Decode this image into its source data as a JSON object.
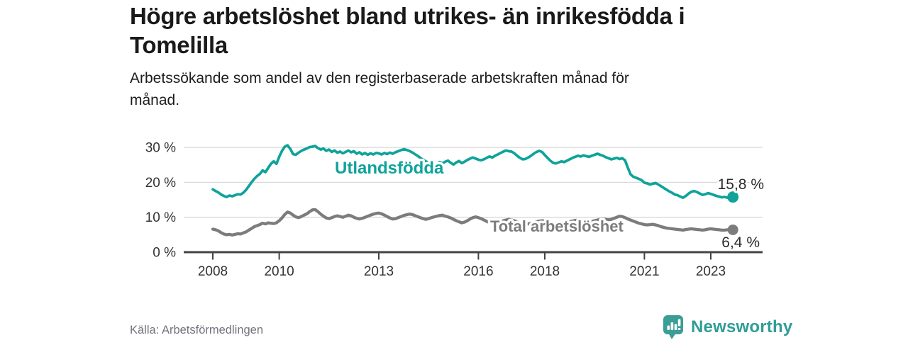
{
  "header": {
    "title": "Högre arbetslöshet bland utrikes- än inrikesfödda i\nTomelilla",
    "subtitle": "Arbetssökande som andel av den registerbaserade arbetskraften månad för\nmånad."
  },
  "chart_data": {
    "type": "line",
    "title": "Högre arbetslöshet bland utrikes- än inrikesfödda i Tomelilla",
    "subtitle": "Arbetssökande som andel av den registerbaserade arbetskraften månad för månad.",
    "x_interval": "monthly",
    "x_start": "2008-01",
    "x_end": "2023-09",
    "ylim": [
      0,
      32
    ],
    "grid": "horizontal",
    "yticks": [
      {
        "value": 0,
        "label": "0 %"
      },
      {
        "value": 10,
        "label": "10 %"
      },
      {
        "value": 20,
        "label": "20 %"
      },
      {
        "value": 30,
        "label": "30 %"
      }
    ],
    "xticks": [
      {
        "value": 2008,
        "label": "2008"
      },
      {
        "value": 2010,
        "label": "2010"
      },
      {
        "value": 2013,
        "label": "2013"
      },
      {
        "value": 2016,
        "label": "2016"
      },
      {
        "value": 2018,
        "label": "2018"
      },
      {
        "value": 2021,
        "label": "2021"
      },
      {
        "value": 2023,
        "label": "2023"
      }
    ],
    "series": [
      {
        "name": "Utlandsfödda",
        "color": "#0fa39a",
        "end_value": 15.8,
        "end_value_label": "15,8 %",
        "values": [
          18.0,
          17.5,
          17.1,
          16.5,
          16.1,
          15.8,
          16.2,
          16.0,
          16.3,
          16.6,
          16.5,
          17.0,
          17.8,
          18.9,
          20.0,
          21.0,
          21.8,
          22.4,
          23.4,
          22.9,
          24.1,
          25.3,
          26.0,
          25.3,
          27.3,
          29.0,
          30.2,
          30.6,
          29.6,
          28.1,
          27.9,
          28.5,
          29.0,
          29.4,
          29.7,
          30.1,
          30.2,
          30.4,
          29.8,
          29.4,
          29.7,
          29.0,
          29.4,
          28.7,
          29.1,
          28.5,
          28.8,
          28.3,
          28.7,
          29.1,
          28.6,
          28.9,
          28.2,
          28.6,
          28.0,
          28.4,
          27.9,
          28.3,
          28.0,
          28.4,
          28.3,
          28.0,
          28.4,
          28.1,
          28.5,
          28.2,
          28.6,
          28.9,
          29.2,
          29.5,
          29.3,
          29.0,
          28.6,
          28.1,
          27.6,
          27.0,
          26.5,
          26.0,
          25.6,
          25.2,
          24.9,
          25.3,
          25.8,
          25.4,
          25.9,
          26.2,
          25.6,
          25.1,
          25.7,
          26.1,
          25.5,
          25.9,
          26.4,
          26.8,
          27.1,
          26.8,
          26.5,
          26.3,
          26.6,
          27.0,
          27.4,
          27.1,
          27.6,
          28.0,
          28.4,
          28.8,
          29.1,
          28.9,
          28.8,
          28.3,
          27.6,
          27.0,
          26.6,
          26.7,
          27.1,
          27.6,
          28.2,
          28.7,
          29.0,
          28.7,
          27.8,
          27.0,
          26.2,
          25.6,
          25.4,
          25.7,
          26.0,
          25.8,
          26.2,
          26.6,
          27.0,
          27.3,
          27.6,
          27.4,
          27.7,
          27.5,
          27.3,
          27.6,
          27.9,
          28.2,
          27.9,
          27.6,
          27.2,
          26.9,
          26.6,
          26.8,
          27.0,
          26.7,
          26.9,
          26.3,
          24.2,
          22.3,
          21.6,
          21.3,
          21.0,
          20.6,
          19.9,
          19.7,
          19.4,
          19.6,
          19.8,
          19.4,
          18.9,
          18.4,
          17.9,
          17.4,
          17.0,
          16.5,
          16.3,
          15.9,
          15.6,
          16.1,
          16.8,
          17.3,
          17.5,
          17.2,
          16.8,
          16.4,
          16.6,
          16.9,
          16.7,
          16.4,
          16.1,
          15.9,
          15.7,
          15.8,
          15.6,
          15.7,
          15.8
        ]
      },
      {
        "name": "Total arbetslöshet",
        "color": "#7d7c7d",
        "end_value": 6.4,
        "end_value_label": "6,4 %",
        "values": [
          6.6,
          6.4,
          6.1,
          5.6,
          5.2,
          5.0,
          5.1,
          4.9,
          5.1,
          5.3,
          5.2,
          5.5,
          5.8,
          6.3,
          6.8,
          7.3,
          7.6,
          7.9,
          8.3,
          8.1,
          8.4,
          8.3,
          8.2,
          8.4,
          9.0,
          9.8,
          10.8,
          11.5,
          11.2,
          10.6,
          10.1,
          9.9,
          10.2,
          10.6,
          11.0,
          11.6,
          12.1,
          12.2,
          11.6,
          10.9,
          10.3,
          9.8,
          9.6,
          9.9,
          10.2,
          10.4,
          10.2,
          10.0,
          10.3,
          10.6,
          10.4,
          10.0,
          9.7,
          9.5,
          9.7,
          10.0,
          10.3,
          10.6,
          10.9,
          11.1,
          11.2,
          11.0,
          10.6,
          10.2,
          9.8,
          9.5,
          9.6,
          9.9,
          10.2,
          10.5,
          10.7,
          10.9,
          10.8,
          10.5,
          10.2,
          9.9,
          9.6,
          9.4,
          9.6,
          9.9,
          10.1,
          10.3,
          10.5,
          10.6,
          10.3,
          10.1,
          9.8,
          9.4,
          9.0,
          8.7,
          8.4,
          8.6,
          9.0,
          9.5,
          9.9,
          10.1,
          9.9,
          9.6,
          9.2,
          8.8,
          8.5,
          8.3,
          8.2,
          8.4,
          8.7,
          9.0,
          9.2,
          9.4,
          9.2,
          9.0,
          8.7,
          8.4,
          8.2,
          8.0,
          8.1,
          8.3,
          8.5,
          8.7,
          8.9,
          9.0,
          8.9,
          8.7,
          8.4,
          8.2,
          8.0,
          7.9,
          8.0,
          8.2,
          8.5,
          8.7,
          8.9,
          9.1,
          9.2,
          9.1,
          8.9,
          8.8,
          8.7,
          8.8,
          9.0,
          9.2,
          9.4,
          9.5,
          9.4,
          9.3,
          9.4,
          9.7,
          10.0,
          10.3,
          10.2,
          9.9,
          9.5,
          9.2,
          8.9,
          8.6,
          8.3,
          8.1,
          7.9,
          7.8,
          7.9,
          8.0,
          7.8,
          7.6,
          7.3,
          7.1,
          6.9,
          6.8,
          6.7,
          6.6,
          6.5,
          6.4,
          6.3,
          6.5,
          6.6,
          6.7,
          6.6,
          6.5,
          6.4,
          6.3,
          6.4,
          6.6,
          6.7,
          6.6,
          6.5,
          6.4,
          6.3,
          6.3,
          6.4,
          6.4,
          6.4
        ]
      }
    ],
    "legend_position": "inline-labels"
  },
  "footer": {
    "source": "Källa: Arbetsförmedlingen",
    "brand": "Newsworthy"
  },
  "colors": {
    "accent_teal": "#0fa39a",
    "line_gray": "#7d7c7d",
    "brand_teal": "#3b9e96",
    "gridline": "#d9d9d9",
    "axis": "#434345"
  }
}
